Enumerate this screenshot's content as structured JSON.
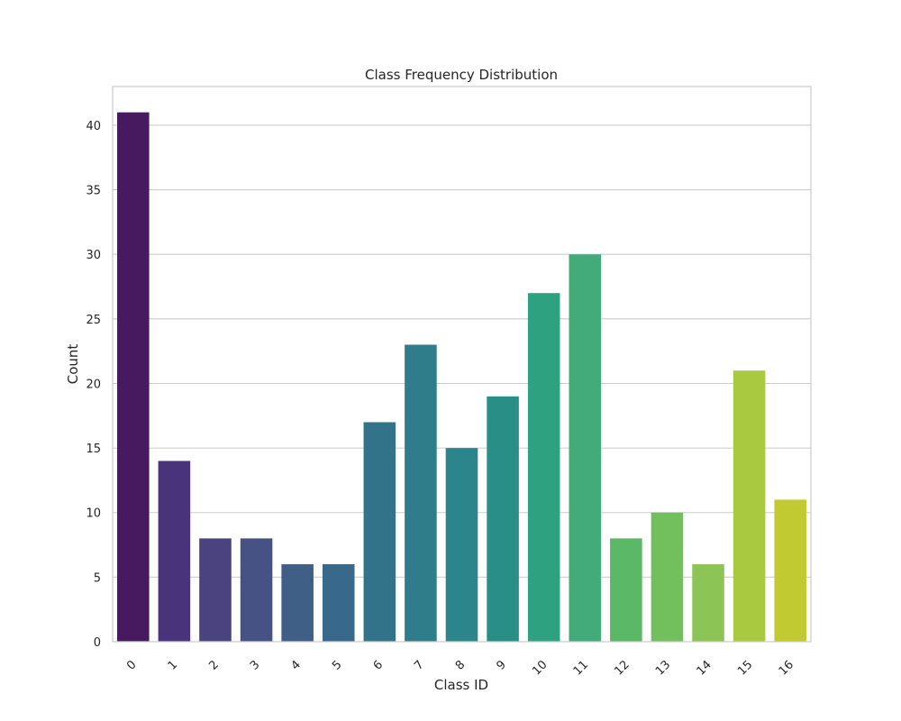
{
  "chart_data": {
    "type": "bar",
    "title": "Class Frequency Distribution",
    "xlabel": "Class ID",
    "ylabel": "Count",
    "categories": [
      "0",
      "1",
      "2",
      "3",
      "4",
      "5",
      "6",
      "7",
      "8",
      "9",
      "10",
      "11",
      "12",
      "13",
      "14",
      "15",
      "16"
    ],
    "values": [
      41,
      14,
      8,
      8,
      6,
      6,
      17,
      23,
      15,
      19,
      27,
      30,
      8,
      10,
      6,
      21,
      11
    ],
    "ylim": [
      0,
      43
    ],
    "yticks": [
      0,
      5,
      10,
      15,
      20,
      25,
      30,
      35,
      40
    ],
    "grid": "horizontal",
    "colors": [
      "#471a5f",
      "#49347c",
      "#4a4380",
      "#465283",
      "#3f5f87",
      "#38698a",
      "#33738a",
      "#2f7d8a",
      "#2b858a",
      "#298f86",
      "#2ea181",
      "#43aa79",
      "#5ab867",
      "#72bf5e",
      "#8cc555",
      "#a8c940",
      "#c2ca31"
    ]
  }
}
